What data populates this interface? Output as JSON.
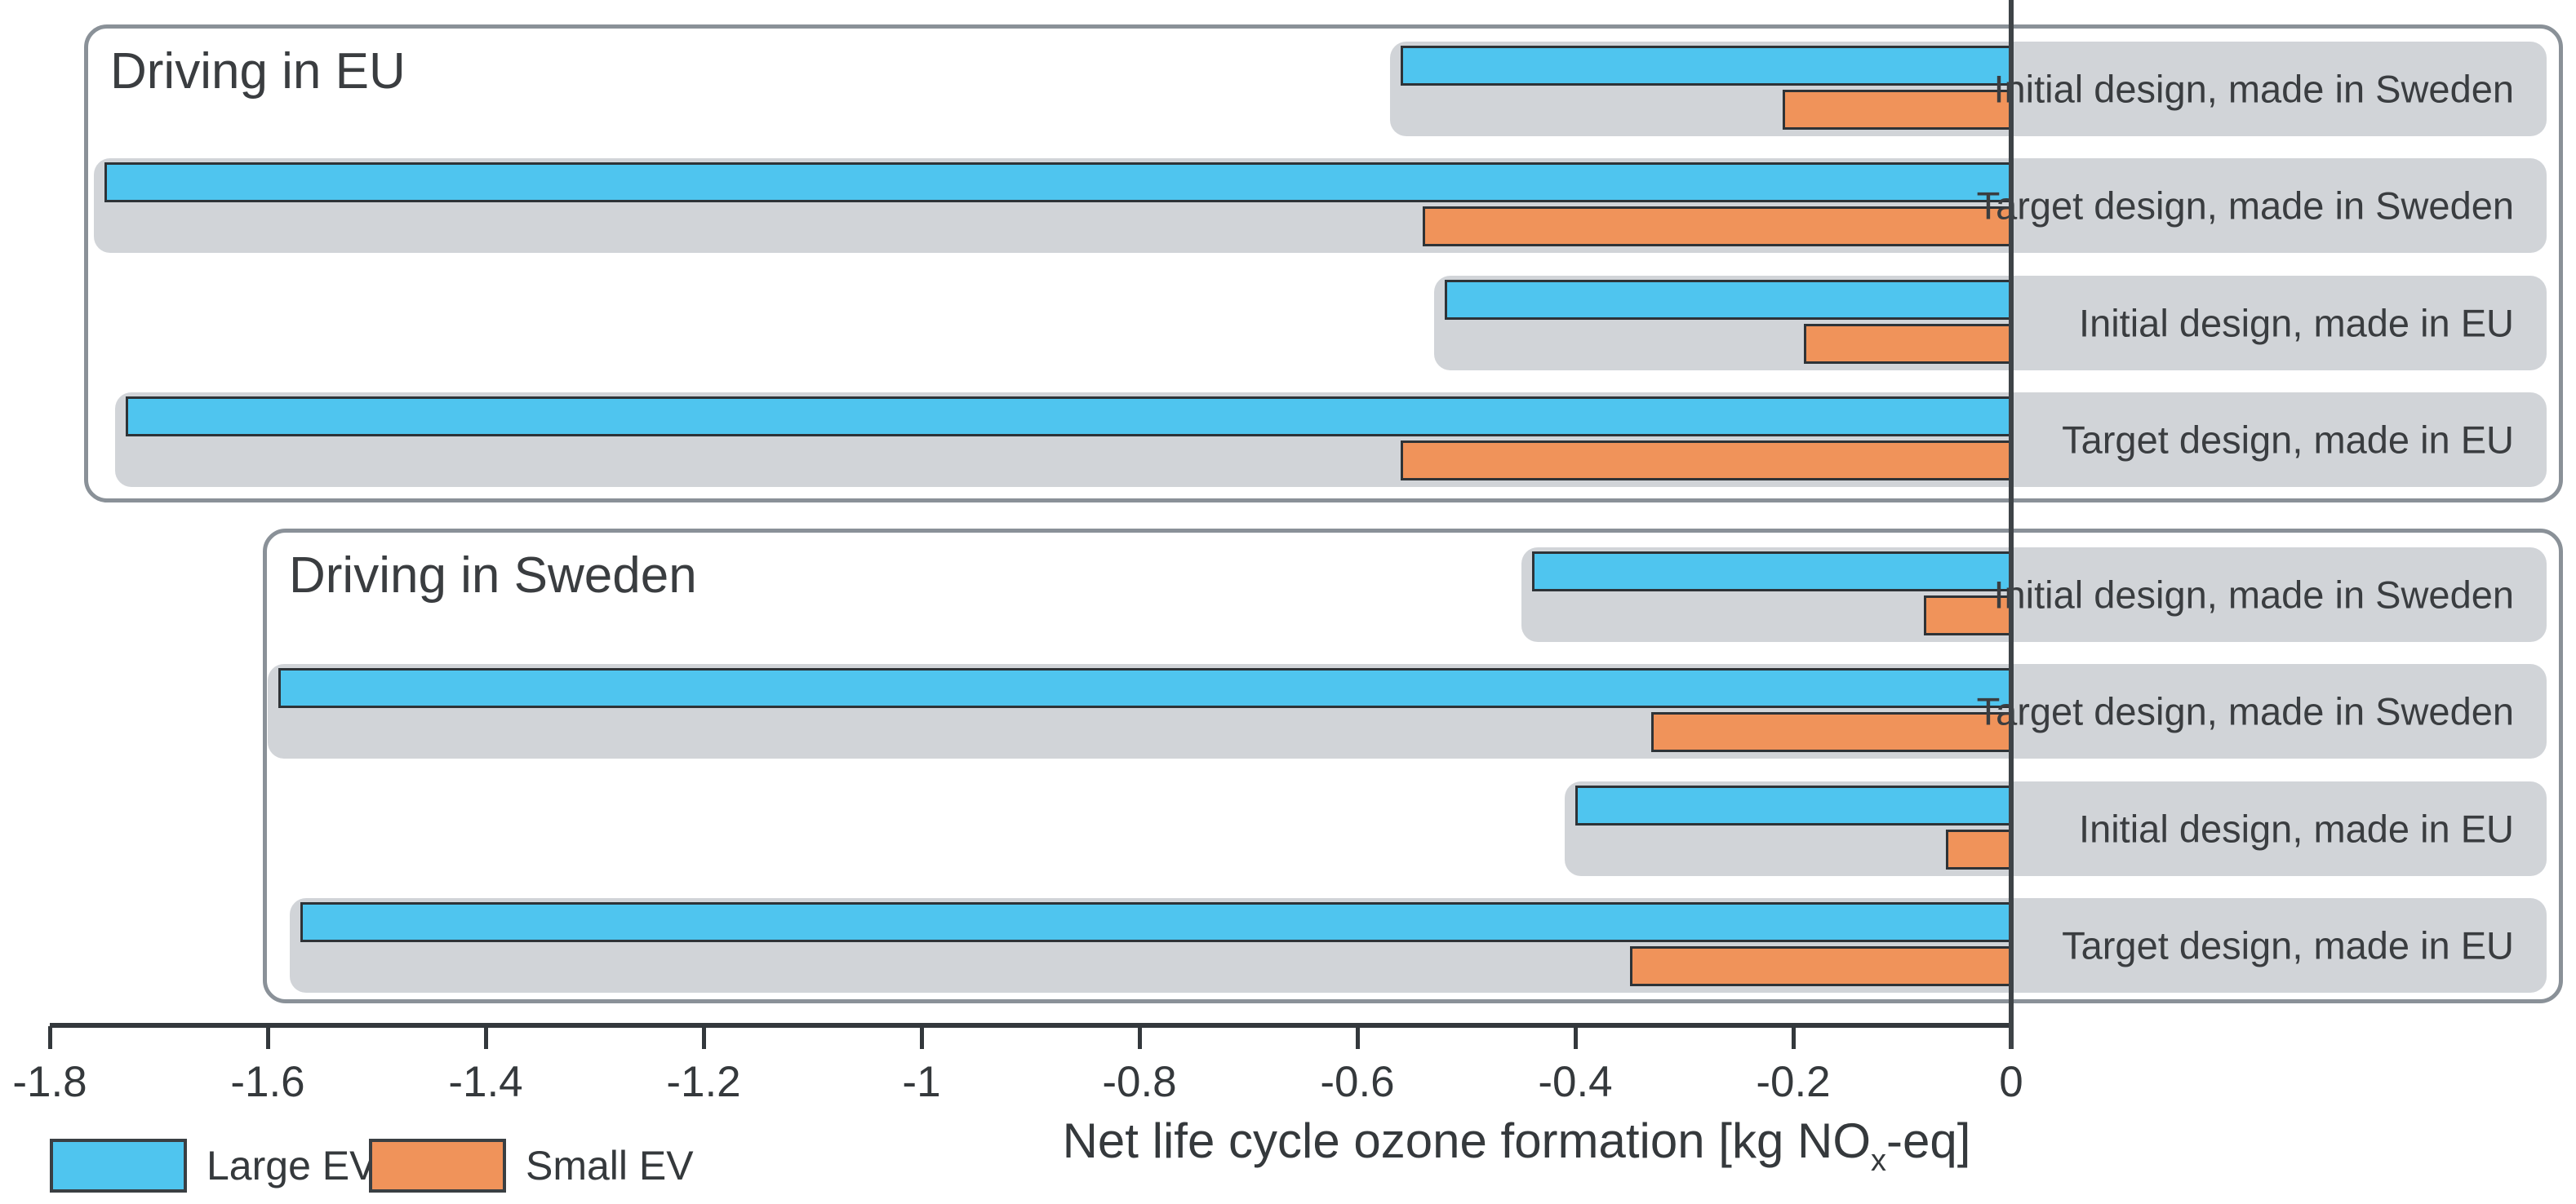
{
  "chart_data": {
    "type": "bar",
    "orientation": "horizontal",
    "title": "",
    "xlabel_prefix": "Net life cycle ozone formation [kg NO",
    "xlabel_sub": "x",
    "xlabel_suffix": "-eq]",
    "xlim": [
      -1.85,
      0.52
    ],
    "grid": false,
    "legend_position": "bottom-left",
    "legend": [
      {
        "name": "Large EV",
        "color": "#4fc5ef"
      },
      {
        "name": "Small EV",
        "color": "#f0935a"
      }
    ],
    "ticks": [
      {
        "value": -1.8,
        "label": "-1.8"
      },
      {
        "value": -1.6,
        "label": "-1.6"
      },
      {
        "value": -1.4,
        "label": "-1.4"
      },
      {
        "value": -1.2,
        "label": "-1.2"
      },
      {
        "value": -1.0,
        "label": "-1"
      },
      {
        "value": -0.8,
        "label": "-0.8"
      },
      {
        "value": -0.6,
        "label": "-0.6"
      },
      {
        "value": -0.4,
        "label": "-0.4"
      },
      {
        "value": -0.2,
        "label": "-0.2"
      },
      {
        "value": 0.0,
        "label": "0"
      }
    ],
    "panels": [
      {
        "title": "Driving in EU",
        "rows": [
          {
            "label": "Initial design, made in Sweden",
            "large_ev": -0.56,
            "small_ev": -0.21
          },
          {
            "label": "Target design, made in Sweden",
            "large_ev": -1.75,
            "small_ev": -0.54
          },
          {
            "label": "Initial design, made in EU",
            "large_ev": -0.52,
            "small_ev": -0.19
          },
          {
            "label": "Target design, made in EU",
            "large_ev": -1.73,
            "small_ev": -0.56
          }
        ]
      },
      {
        "title": "Driving in Sweden",
        "rows": [
          {
            "label": "Initial design, made in Sweden",
            "large_ev": -0.44,
            "small_ev": -0.08
          },
          {
            "label": "Target design, made in Sweden",
            "large_ev": -1.59,
            "small_ev": -0.33
          },
          {
            "label": "Initial design, made in EU",
            "large_ev": -0.4,
            "small_ev": -0.06
          },
          {
            "label": "Target design, made in EU",
            "large_ev": -1.57,
            "small_ev": -0.35
          }
        ]
      }
    ],
    "colors": {
      "large_ev_bar": "#4fc5ef",
      "small_ev_bar": "#f0935a",
      "row_background": "#d1d4d8",
      "panel_border": "#8a9198",
      "bar_border": "#2e3337",
      "axis_line": "#33383c",
      "text": "#3a3d40"
    }
  }
}
